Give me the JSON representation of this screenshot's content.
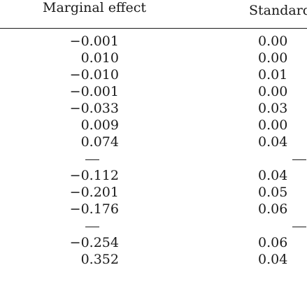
{
  "headers": {
    "marginal_effect": "Marginal effect",
    "standard_error": "Standard"
  },
  "rows": [
    {
      "me": "−0.001",
      "se": "0.00"
    },
    {
      "me": "0.010",
      "se": "0.00"
    },
    {
      "me": "−0.010",
      "se": "0.01"
    },
    {
      "me": "−0.001",
      "se": "0.00"
    },
    {
      "me": "−0.033",
      "se": "0.03"
    },
    {
      "me": "0.009",
      "se": "0.00"
    },
    {
      "me": "0.074",
      "se": "0.04"
    },
    {
      "me": "—",
      "se": "—",
      "dash": true
    },
    {
      "me": "−0.112",
      "se": "0.04"
    },
    {
      "me": "−0.201",
      "se": "0.05"
    },
    {
      "me": "−0.176",
      "se": "0.06"
    },
    {
      "me": "—",
      "se": "—",
      "dash": true
    },
    {
      "me": "−0.254",
      "se": "0.06"
    },
    {
      "me": "0.352",
      "se": "0.04"
    }
  ]
}
